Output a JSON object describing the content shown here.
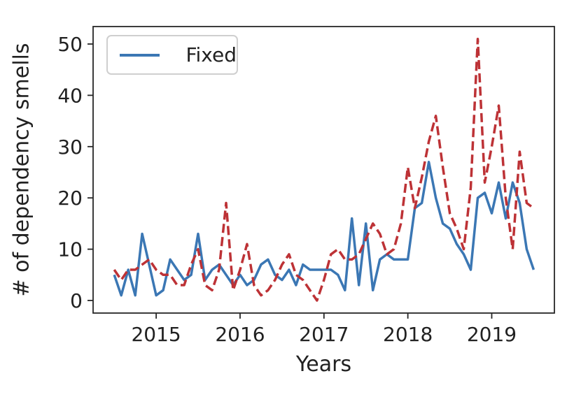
{
  "chart_data": {
    "type": "line",
    "title": "",
    "xlabel": "Years",
    "ylabel": "# of dependency smells",
    "x_unit": "month",
    "x_monthly_range": {
      "start": "2014-07",
      "end": "2019-07"
    },
    "x_tick_labels": [
      "2015",
      "2016",
      "2017",
      "2018",
      "2019"
    ],
    "x_tick_month_index": [
      6,
      18,
      30,
      42,
      54
    ],
    "y_ticks": [
      0,
      10,
      20,
      30,
      40,
      50
    ],
    "ylim": [
      -2.5,
      53
    ],
    "grid": "off",
    "plot_background": "#ffffff",
    "axis_color": "#262626",
    "legend": {
      "position": "upper-left",
      "entries": [
        {
          "label": "Fixed",
          "color": "#3b77b4",
          "style": "solid"
        }
      ]
    },
    "series": [
      {
        "name": "Fixed",
        "color": "#3b77b4",
        "style": "solid",
        "values": [
          5,
          1,
          6,
          1,
          13,
          7,
          1,
          2,
          8,
          6,
          4,
          5,
          13,
          4,
          6,
          7,
          5,
          3,
          5,
          3,
          4,
          7,
          8,
          5,
          4,
          6,
          3,
          7,
          6,
          6,
          6,
          6,
          5,
          2,
          16,
          3,
          15,
          2,
          8,
          9,
          8,
          8,
          8,
          18,
          19,
          27,
          20,
          15,
          14,
          11,
          9,
          6,
          20,
          21,
          17,
          23,
          16,
          23,
          19,
          10,
          6
        ]
      },
      {
        "name": "red-dashed-unlabeled",
        "color": "#bd3236",
        "style": "dashed",
        "values": [
          6,
          4,
          6,
          6,
          7,
          8,
          6,
          5,
          5,
          3,
          3,
          7,
          10,
          3,
          2,
          6,
          19,
          2,
          6,
          11,
          3,
          1,
          2,
          4,
          7,
          9,
          5,
          4,
          2,
          0,
          4,
          9,
          10,
          8,
          8,
          9,
          12,
          15,
          13,
          9,
          10,
          15,
          26,
          18,
          24,
          31,
          36,
          26,
          17,
          14,
          10,
          22,
          51,
          23,
          30,
          38,
          20,
          10,
          29,
          19,
          18
        ]
      }
    ]
  }
}
